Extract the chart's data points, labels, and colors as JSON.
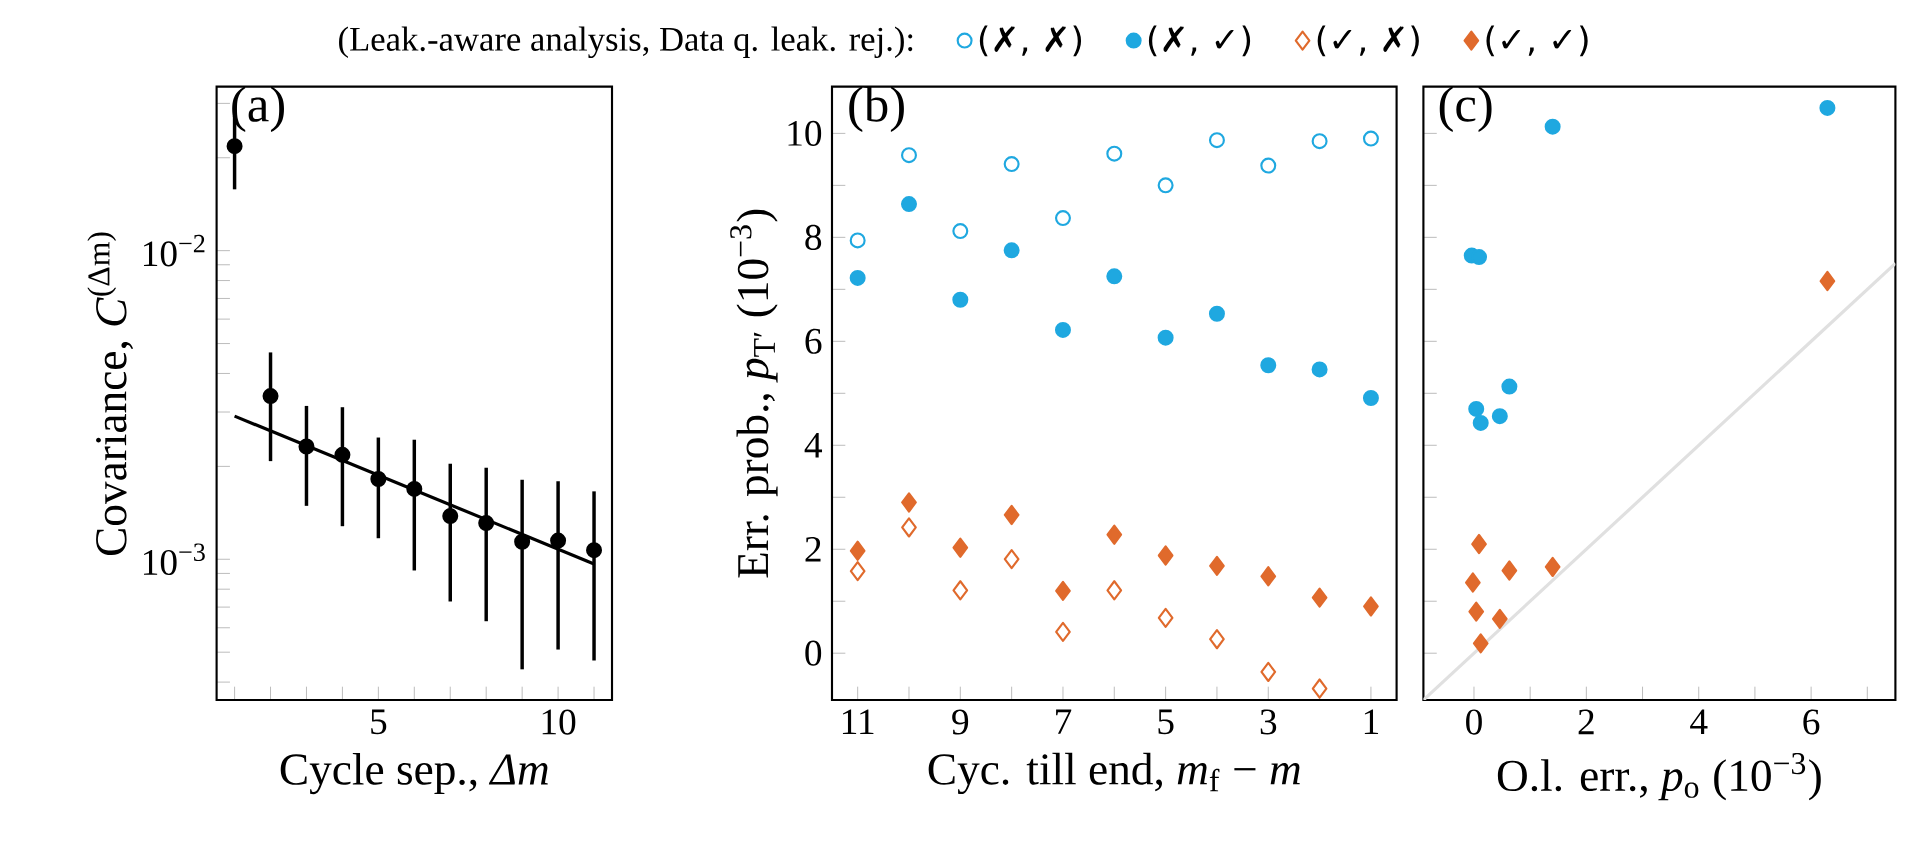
{
  "chart_data": [
    {
      "type": "scatter",
      "title": "(a)",
      "xlabel": "Cycle sep., *Δm*",
      "ylabel": "Covariance, *C*$^{(Δm)}$",
      "log": "y",
      "marker": "circle",
      "xlim": [
        0.5,
        11.5
      ],
      "xticks": [
        {
          "value": 1,
          "label": null
        },
        {
          "value": 2,
          "label": null
        },
        {
          "value": 3,
          "label": null
        },
        {
          "value": 4,
          "label": null
        },
        5,
        {
          "value": 6,
          "label": null
        },
        {
          "value": 7,
          "label": null
        },
        {
          "value": 8,
          "label": null
        },
        {
          "value": 9,
          "label": null
        },
        10,
        {
          "value": 11,
          "label": null
        }
      ],
      "ylim": [
        0.00035,
        0.034
      ],
      "yticks": [
        {
          "value": 0.0004,
          "label": null
        },
        {
          "value": 0.0005,
          "label": null
        },
        {
          "value": 0.0006,
          "label": null
        },
        {
          "value": 0.0007,
          "label": null
        },
        {
          "value": 0.0008,
          "label": null
        },
        {
          "value": 0.0009,
          "label": null
        },
        {
          "value": 0.001,
          "label": "10$^{−3}$"
        },
        {
          "value": 0.002,
          "label": null
        },
        {
          "value": 0.003,
          "label": null
        },
        {
          "value": 0.004,
          "label": null
        },
        {
          "value": 0.005,
          "label": null
        },
        {
          "value": 0.006,
          "label": null
        },
        {
          "value": 0.007,
          "label": null
        },
        {
          "value": 0.008,
          "label": null
        },
        {
          "value": 0.009,
          "label": null
        },
        {
          "value": 0.01,
          "label": "10$^{−2}$"
        },
        {
          "value": 0.02,
          "label": null
        },
        {
          "value": 0.03,
          "label": null
        }
      ],
      "series": [
        {
          "color": "#000000",
          "x": [
            1,
            2,
            3,
            4,
            5,
            6,
            7,
            8,
            9,
            10,
            11
          ],
          "values": [
            0.0218,
            0.00338,
            0.00232,
            0.00218,
            0.00182,
            0.00169,
            0.00138,
            0.00131,
            0.00114,
            0.00115,
            0.00107
          ],
          "errors": [
            [
              0.0158,
              0.0273
            ],
            [
              0.00208,
              0.00468
            ],
            [
              0.00149,
              0.00314
            ],
            [
              0.00128,
              0.00311
            ],
            [
              0.00117,
              0.00248
            ],
            [
              0.00092,
              0.00244
            ],
            [
              0.00073,
              0.00204
            ],
            [
              0.00063,
              0.00198
            ],
            [
              0.00044,
              0.00181
            ],
            [
              0.00051,
              0.00179
            ],
            [
              0.00047,
              0.00166
            ]
          ]
        },
        {
          "type": "line",
          "marker": "none",
          "line_style": "solid",
          "color": "#000000",
          "x": [
            1,
            11
          ],
          "values": [
            0.00291,
            0.000966
          ]
        }
      ]
    },
    {
      "type": "scatter",
      "title": "(b)",
      "xlabel": "Cyc. till end, *m*$_{f}$ − *m*",
      "ylabel": "Err. prob., *p*$_{T′}$ (10$^{−3}$)",
      "legend": "top",
      "legend_title": "(Leak.-aware analysis, Data q. leak. rej.):",
      "x": [
        11,
        10,
        9,
        8,
        7,
        6,
        5,
        4,
        3,
        2,
        1
      ],
      "xlim": [
        11.5,
        0.5
      ],
      "xticks": [
        11,
        {
          "value": 10,
          "label": null
        },
        9,
        {
          "value": 8,
          "label": null
        },
        7,
        {
          "value": 6,
          "label": null
        },
        5,
        {
          "value": 4,
          "label": null
        },
        3,
        {
          "value": 2,
          "label": null
        },
        1
      ],
      "ylim": [
        -0.9,
        10.9
      ],
      "yticks": [
        0,
        {
          "value": 1,
          "label": null
        },
        2,
        {
          "value": 3,
          "label": null
        },
        4,
        {
          "value": 5,
          "label": null
        },
        6,
        {
          "value": 7,
          "label": null
        },
        8,
        {
          "value": 9,
          "label": null
        },
        10
      ],
      "series": [
        {
          "name": "(✗, ✗)",
          "color": "#1fa8e0",
          "marker": "circle-open",
          "values": [
            7.94,
            9.58,
            8.12,
            9.41,
            8.37,
            9.61,
            9.0,
            9.87,
            9.38,
            9.85,
            9.9
          ]
        },
        {
          "name": "(✗, ✓)",
          "color": "#1fa8e0",
          "marker": "circle",
          "values": [
            7.22,
            8.64,
            6.8,
            7.75,
            6.22,
            7.25,
            6.07,
            6.53,
            5.54,
            5.46,
            4.91
          ]
        },
        {
          "name": "(✓, ✗)",
          "color": "#e06a2c",
          "marker": "diamond-open",
          "values": [
            1.58,
            2.42,
            1.21,
            1.81,
            0.41,
            1.21,
            0.68,
            0.27,
            -0.36,
            -0.68,
            null
          ]
        },
        {
          "name": "(✓, ✓)",
          "color": "#e06a2c",
          "marker": "diamond",
          "values": [
            1.97,
            2.9,
            2.03,
            2.66,
            1.2,
            2.28,
            1.88,
            1.68,
            1.48,
            1.07,
            0.9
          ]
        }
      ]
    },
    {
      "type": "scatter",
      "title": "(c)",
      "xlabel": "O.l. err., *p*$_{o}$ (10$^{−3}$)",
      "tick_labels": "x",
      "xlim": [
        -0.9,
        7.5
      ],
      "xticks": [
        0,
        {
          "value": 1,
          "label": null
        },
        2,
        {
          "value": 3,
          "label": null
        },
        4,
        {
          "value": 5,
          "label": null
        },
        6,
        {
          "value": 7,
          "label": null
        }
      ],
      "ylim": [
        -0.9,
        10.9
      ],
      "yticks": [
        {
          "value": 0,
          "label": null
        },
        {
          "value": 1,
          "label": null
        },
        {
          "value": 2,
          "label": null
        },
        {
          "value": 3,
          "label": null
        },
        {
          "value": 4,
          "label": null
        },
        {
          "value": 5,
          "label": null
        },
        {
          "value": 6,
          "label": null
        },
        {
          "value": 7,
          "label": null
        },
        {
          "value": 8,
          "label": null
        },
        {
          "value": 9,
          "label": null
        },
        {
          "value": 10,
          "label": null
        }
      ],
      "series": [
        {
          "type": "line",
          "marker": "none",
          "line_style": "solid",
          "color": "#e0e0e0",
          "x": [
            -0.9,
            7.5
          ],
          "values": [
            -0.9,
            7.5
          ]
        },
        {
          "color": "#1fa8e0",
          "marker": "circle",
          "x": [
            6.29,
            1.4,
            -0.04,
            0.09,
            0.63,
            0.04,
            0.46,
            0.12
          ],
          "values": [
            10.49,
            10.13,
            7.65,
            7.62,
            5.13,
            4.7,
            4.56,
            4.43
          ]
        },
        {
          "color": "#e06a2c",
          "marker": "diamond",
          "x": [
            6.29,
            0.09,
            1.4,
            0.63,
            -0.02,
            0.04,
            0.46,
            0.12
          ],
          "values": [
            7.16,
            2.1,
            1.66,
            1.59,
            1.36,
            0.8,
            0.66,
            0.19
          ]
        }
      ]
    }
  ]
}
